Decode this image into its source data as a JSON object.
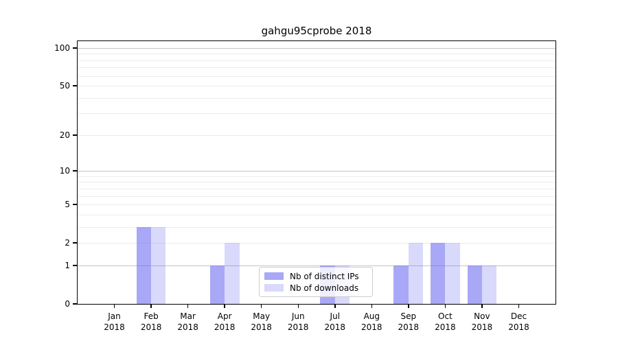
{
  "title": "gahgu95cprobe 2018",
  "chart_data": {
    "type": "bar",
    "title": "gahgu95cprobe 2018",
    "categories": [
      "Jan",
      "Feb",
      "Mar",
      "Apr",
      "May",
      "Jun",
      "Jul",
      "Aug",
      "Sep",
      "Oct",
      "Nov",
      "Dec"
    ],
    "x_year_label": "2018",
    "series": [
      {
        "name": "Nb of distinct IPs",
        "values": [
          0,
          3,
          0,
          1,
          0,
          0,
          1,
          0,
          1,
          2,
          1,
          0
        ],
        "color": "rgba(105,105,240,0.58)"
      },
      {
        "name": "Nb of downloads",
        "values": [
          0,
          3,
          0,
          2,
          0,
          0,
          1,
          0,
          2,
          2,
          1,
          0
        ],
        "color": "rgba(105,105,240,0.25)"
      }
    ],
    "yscale": "log1p",
    "ylim": [
      0,
      113
    ],
    "yticks": [
      0,
      1,
      2,
      5,
      10,
      20,
      50,
      100
    ],
    "grid": {
      "orientation": "horizontal",
      "major_values": [
        1,
        10,
        100
      ],
      "minor_values": [
        2,
        3,
        4,
        5,
        6,
        7,
        8,
        9,
        20,
        30,
        40,
        50,
        60,
        70,
        80,
        90
      ]
    },
    "legend_position": "lower center inside plot",
    "bar_layout": "paired, series1 left of month center, series2 right"
  }
}
